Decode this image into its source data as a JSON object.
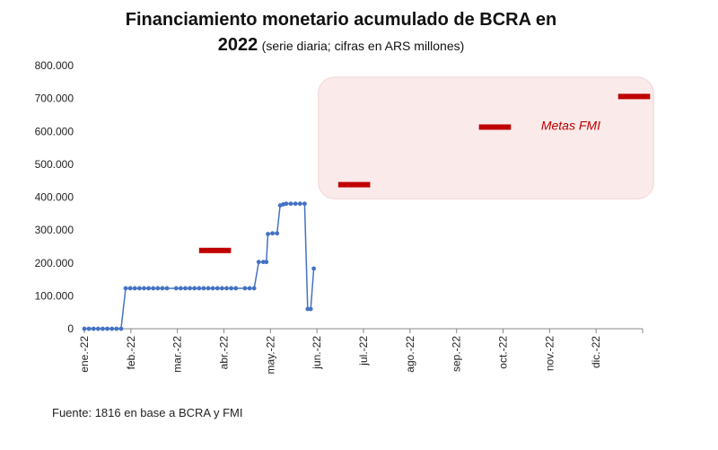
{
  "chart_data": {
    "type": "line",
    "title_line1": "Financiamiento monetario acumulado de BCRA en",
    "title_line2": "2022",
    "subtitle": "(serie diaria; cifras en ARS millones)",
    "source": "Fuente: 1816 en base a BCRA y FMI",
    "ylim": [
      0,
      800000
    ],
    "y_ticks": [
      0,
      100000,
      200000,
      300000,
      400000,
      500000,
      600000,
      700000,
      800000
    ],
    "y_tick_labels": [
      "0",
      "100.000",
      "200.000",
      "300.000",
      "400.000",
      "500.000",
      "600.000",
      "700.000",
      "800.000"
    ],
    "x_ticks": [
      "ene.-22",
      "feb.-22",
      "mar.-22",
      "abr.-22",
      "may.-22",
      "jun.-22",
      "jul.-22",
      "ago.-22",
      "sep.-22",
      "oct.-22",
      "nov.-22",
      "dic.-22"
    ],
    "grid": false,
    "series": [
      {
        "color": "#4472c4",
        "points": [
          [
            "2022-01-01",
            0
          ],
          [
            "2022-01-04",
            0
          ],
          [
            "2022-01-07",
            0
          ],
          [
            "2022-01-10",
            0
          ],
          [
            "2022-01-13",
            0
          ],
          [
            "2022-01-16",
            0
          ],
          [
            "2022-01-19",
            0
          ],
          [
            "2022-01-22",
            0
          ],
          [
            "2022-01-25",
            0
          ],
          [
            "2022-01-28",
            123000
          ],
          [
            "2022-01-31",
            123000
          ],
          [
            "2022-02-03",
            123000
          ],
          [
            "2022-02-06",
            123000
          ],
          [
            "2022-02-09",
            123000
          ],
          [
            "2022-02-12",
            123000
          ],
          [
            "2022-02-15",
            123000
          ],
          [
            "2022-02-18",
            123000
          ],
          [
            "2022-02-21",
            123000
          ],
          [
            "2022-02-24",
            123000
          ],
          [
            "2022-03-02",
            123000
          ],
          [
            "2022-03-05",
            123000
          ],
          [
            "2022-03-08",
            123000
          ],
          [
            "2022-03-11",
            123000
          ],
          [
            "2022-03-14",
            123000
          ],
          [
            "2022-03-17",
            123000
          ],
          [
            "2022-03-20",
            123000
          ],
          [
            "2022-03-23",
            123000
          ],
          [
            "2022-03-26",
            123000
          ],
          [
            "2022-03-29",
            123000
          ],
          [
            "2022-04-01",
            123000
          ],
          [
            "2022-04-04",
            123000
          ],
          [
            "2022-04-07",
            123000
          ],
          [
            "2022-04-10",
            123000
          ],
          [
            "2022-04-16",
            123000
          ],
          [
            "2022-04-19",
            123000
          ],
          [
            "2022-04-22",
            123000
          ],
          [
            "2022-04-25",
            203000
          ],
          [
            "2022-04-28",
            203000
          ],
          [
            "2022-04-30",
            203000
          ],
          [
            "2022-05-01",
            288000
          ],
          [
            "2022-05-04",
            290000
          ],
          [
            "2022-05-07",
            290000
          ],
          [
            "2022-05-09",
            375000
          ],
          [
            "2022-05-11",
            378000
          ],
          [
            "2022-05-13",
            380000
          ],
          [
            "2022-05-16",
            380000
          ],
          [
            "2022-05-19",
            380000
          ],
          [
            "2022-05-22",
            380000
          ],
          [
            "2022-05-25",
            380000
          ],
          [
            "2022-05-27",
            60000
          ],
          [
            "2022-05-29",
            60000
          ],
          [
            "2022-05-31",
            183000
          ]
        ]
      }
    ],
    "targets": {
      "label": "Metas FMI",
      "color": "#c00000",
      "items": [
        {
          "start": "2022-03-17",
          "end": "2022-04-01",
          "value": 238000
        },
        {
          "start": "2022-06-16",
          "end": "2022-07-01",
          "value": 438000
        },
        {
          "start": "2022-09-16",
          "end": "2022-10-01",
          "value": 613000
        },
        {
          "start": "2022-12-16",
          "end": "2022-12-31",
          "value": 706000
        }
      ]
    },
    "highlight_box_color": "#fbeaea"
  }
}
